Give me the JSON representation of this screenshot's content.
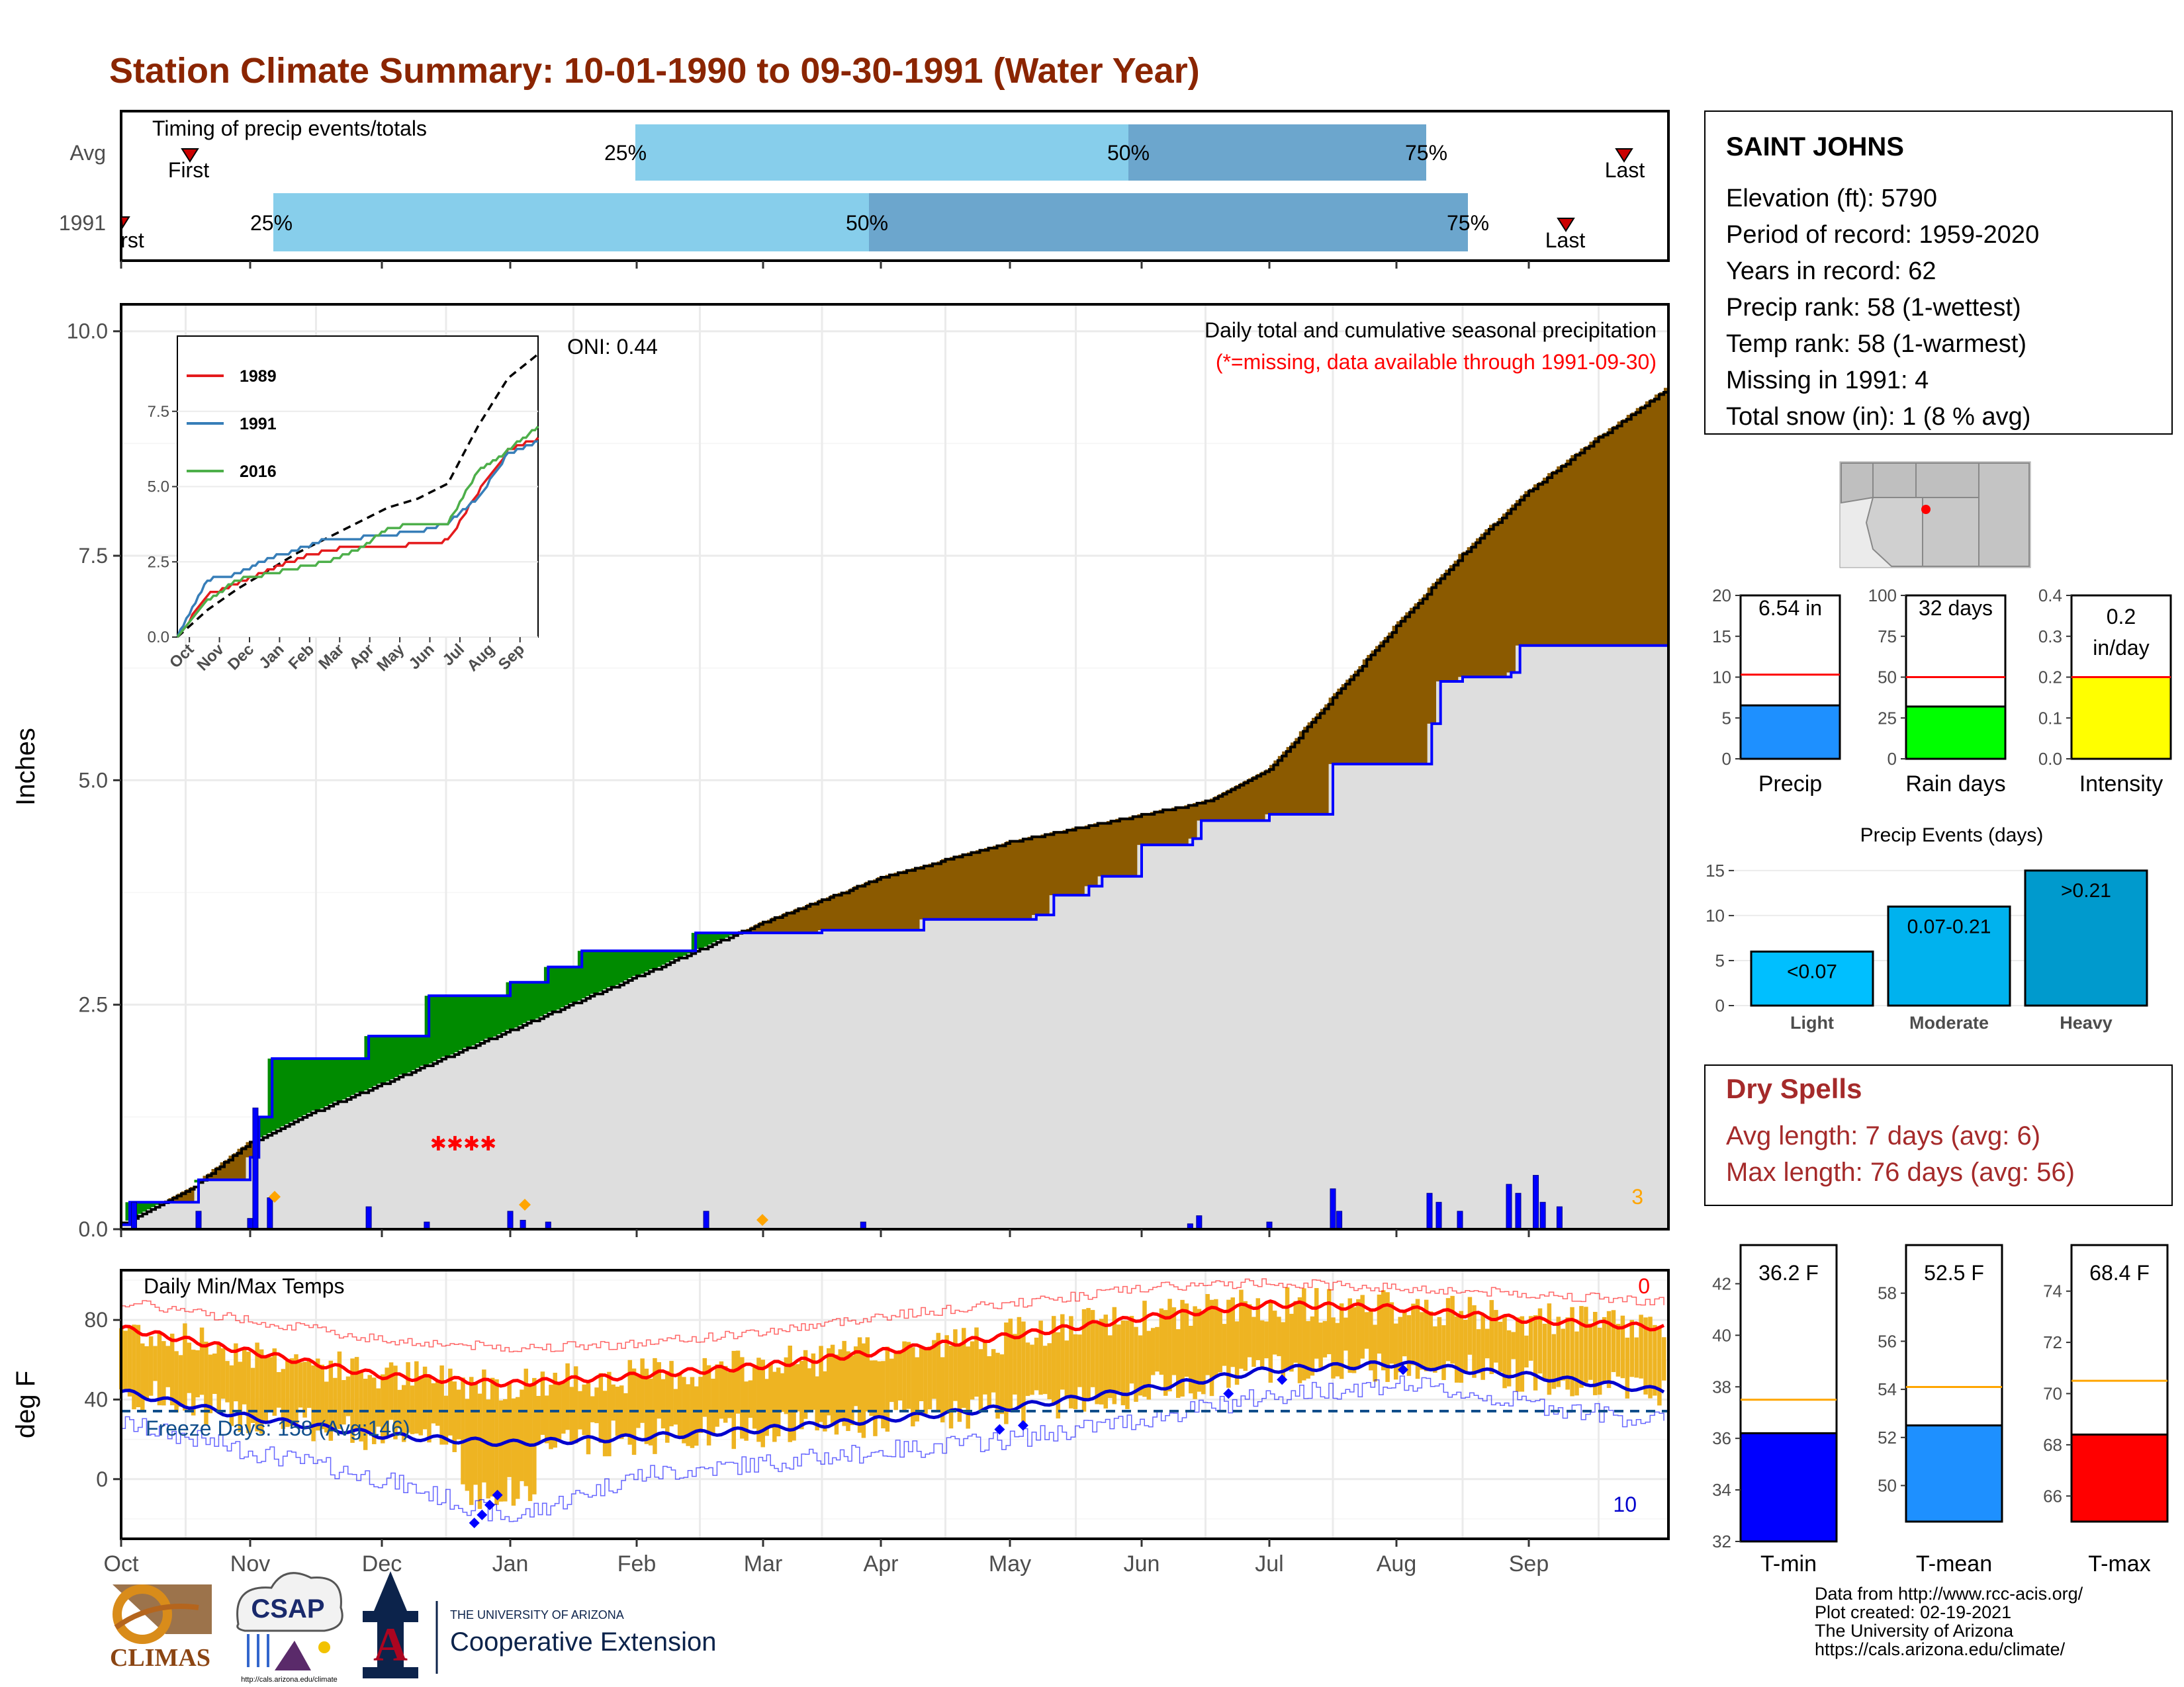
{
  "title": "Station Climate Summary: 10-01-1990 to 09-30-1991 (Water Year)",
  "colors": {
    "title": "#8b2500",
    "light_blue": "#87ceeb",
    "mid_blue": "#6ca6cd",
    "brown": "#8b5a00",
    "green": "#008b00",
    "gray_fill": "#dedede",
    "precip_blue": "#0000ff",
    "temp_bar": "#eeb422",
    "tmax_line": "#ff0000",
    "tmin_line": "#0000cd",
    "freeze_line": "#104e8b",
    "marker_orange": "#ffa500",
    "dry_spell_text": "#a52a2a"
  },
  "timing": {
    "title": "Timing of precip events/totals",
    "rows": [
      "Avg",
      "1991"
    ],
    "avg": {
      "first_label": "First",
      "last_label": "Last",
      "q25": "25%",
      "q50": "50%",
      "q75": "75%"
    },
    "year": {
      "first_label": "rst",
      "last_label": "Last",
      "q25": "25%",
      "q50": "50%",
      "q75": "75%"
    }
  },
  "info": {
    "station": "SAINT JOHNS",
    "lines": [
      "Elevation (ft): 5790",
      "Period of record: 1959-2020",
      "Years in record: 62",
      "Precip rank: 58 (1-wettest)",
      "Temp rank: 58 (1-warmest)",
      "Missing in 1991: 4",
      "Total snow (in): 1 (8 % avg)"
    ]
  },
  "precip_panel": {
    "ylabel": "Inches",
    "oni": "ONI: 0.44",
    "header": "Daily total and cumulative seasonal precipitation",
    "missing_note": "(*=missing, data available through 1991-09-30)",
    "corner_count": "3",
    "yticks": [
      "0.0",
      "2.5",
      "5.0",
      "7.5",
      "10.0"
    ]
  },
  "inset": {
    "yticks": [
      "0.0",
      "2.5",
      "5.0",
      "7.5"
    ],
    "xticks": [
      "Oct",
      "Nov",
      "Dec",
      "Jan",
      "Feb",
      "Mar",
      "Apr",
      "May",
      "Jun",
      "Jul",
      "Aug",
      "Sep"
    ],
    "legend": [
      "1989",
      "1991",
      "2016"
    ]
  },
  "temp_panel": {
    "ylabel": "deg F",
    "title": "Daily Min/Max Temps",
    "freeze": "Freeze Days: 158 (Avg:146)",
    "count_hot": "0",
    "count_cold": "10",
    "yticks": [
      "0",
      "40",
      "80"
    ]
  },
  "months": [
    "Oct",
    "Nov",
    "Dec",
    "Jan",
    "Feb",
    "Mar",
    "Apr",
    "May",
    "Jun",
    "Jul",
    "Aug",
    "Sep"
  ],
  "mini_bars_precip": [
    {
      "label": "Precip",
      "value_label": "6.54 in",
      "yticks": [
        "0",
        "5",
        "10",
        "15",
        "20"
      ]
    },
    {
      "label": "Rain days",
      "value_label": "32 days",
      "yticks": [
        "0",
        "25",
        "50",
        "75",
        "100"
      ]
    },
    {
      "label": "Intensity",
      "value_label_1": "0.2",
      "value_label_2": "in/day",
      "yticks": [
        "0.0",
        "0.1",
        "0.2",
        "0.3",
        "0.4"
      ]
    }
  ],
  "events": {
    "title": "Precip Events (days)",
    "categories": [
      "Light",
      "Moderate",
      "Heavy"
    ],
    "bar_labels": [
      "<0.07",
      "0.07-0.21",
      ">0.21"
    ],
    "yticks": [
      "0",
      "5",
      "10",
      "15"
    ]
  },
  "dry_spells": {
    "title": "Dry Spells",
    "avg_length": "Avg length: 7 days (avg: 6)",
    "max_length": "Max length: 76 days (avg: 56)"
  },
  "mini_bars_temp": [
    {
      "label": "T-min",
      "value_label": "36.2 F",
      "yticks": [
        "32",
        "34",
        "36",
        "38",
        "40",
        "42"
      ]
    },
    {
      "label": "T-mean",
      "value_label": "52.5 F",
      "yticks": [
        "50",
        "52",
        "54",
        "56",
        "58"
      ]
    },
    {
      "label": "T-max",
      "value_label": "68.4 F",
      "yticks": [
        "66",
        "68",
        "70",
        "72",
        "74"
      ]
    }
  ],
  "footer": {
    "lines": [
      "Data from http://www.rcc-acis.org/",
      "Plot created: 02-19-2021",
      "The University of Arizona",
      "https://cals.arizona.edu/climate/"
    ],
    "logo_climas": "CLIMAS",
    "logo_csap": "CSAP",
    "logo_csap_url": "http://cals.arizona.edu/climate",
    "ua_small": "THE UNIVERSITY OF ARIZONA",
    "ua_big": "Cooperative Extension",
    "ua_letter": "A"
  },
  "chart_data": [
    {
      "type": "area",
      "title": "Daily total and cumulative seasonal precipitation",
      "ylabel": "Inches",
      "ylim": [
        0,
        10.3
      ],
      "x_unit": "month",
      "x_categories": [
        "Oct",
        "Nov",
        "Dec",
        "Jan",
        "Feb",
        "Mar",
        "Apr",
        "May",
        "Jun",
        "Jul",
        "Aug",
        "Sep"
      ],
      "series": [
        {
          "name": "average cumulative",
          "x": [
            0,
            0.5,
            1.0,
            1.5,
            2.0,
            2.5,
            3.0,
            3.5,
            4.0,
            4.5,
            5.0,
            5.5,
            6.0,
            6.5,
            7.0,
            7.5,
            8.0,
            8.5,
            9.0,
            9.5,
            10.0,
            10.5,
            11.0,
            11.5,
            12.0
          ],
          "values": [
            0.05,
            0.4,
            0.95,
            1.3,
            1.6,
            1.9,
            2.2,
            2.5,
            2.8,
            3.1,
            3.4,
            3.65,
            3.9,
            4.1,
            4.3,
            4.45,
            4.6,
            4.75,
            5.1,
            5.9,
            6.7,
            7.5,
            8.2,
            8.8,
            9.35
          ]
        },
        {
          "name": "1991 cumulative",
          "x": [
            0,
            0.06,
            0.6,
            1.0,
            1.04,
            1.15,
            1.9,
            2.35,
            3.0,
            3.3,
            3.55,
            4.45,
            5.5,
            6.32,
            7.18,
            7.32,
            7.6,
            7.7,
            8.0,
            8.38,
            8.45,
            9.0,
            9.5,
            10.25,
            10.32,
            10.48,
            10.85,
            10.92,
            12.0
          ],
          "values": [
            0.05,
            0.3,
            0.55,
            0.8,
            1.25,
            1.9,
            2.15,
            2.6,
            2.75,
            2.92,
            3.1,
            3.3,
            3.33,
            3.45,
            3.5,
            3.72,
            3.82,
            3.93,
            4.28,
            4.35,
            4.55,
            4.62,
            5.18,
            5.63,
            6.1,
            6.15,
            6.2,
            6.5,
            6.5
          ]
        }
      ],
      "daily_precip_inches": [
        {
          "x": 0.1,
          "value": 0.3
        },
        {
          "x": 0.6,
          "value": 0.2
        },
        {
          "x": 1.0,
          "value": 0.12
        },
        {
          "x": 1.04,
          "value": 1.35
        },
        {
          "x": 1.15,
          "value": 0.35
        },
        {
          "x": 1.9,
          "value": 0.25
        },
        {
          "x": 2.35,
          "value": 0.08
        },
        {
          "x": 3.0,
          "value": 0.2
        },
        {
          "x": 3.1,
          "value": 0.1
        },
        {
          "x": 3.3,
          "value": 0.08
        },
        {
          "x": 4.55,
          "value": 0.2
        },
        {
          "x": 5.85,
          "value": 0.08
        },
        {
          "x": 8.38,
          "value": 0.06
        },
        {
          "x": 8.45,
          "value": 0.15
        },
        {
          "x": 9.0,
          "value": 0.08
        },
        {
          "x": 9.5,
          "value": 0.45
        },
        {
          "x": 9.55,
          "value": 0.2
        },
        {
          "x": 10.25,
          "value": 0.4
        },
        {
          "x": 10.32,
          "value": 0.3
        },
        {
          "x": 10.48,
          "value": 0.2
        },
        {
          "x": 10.85,
          "value": 0.5
        },
        {
          "x": 10.92,
          "value": 0.4
        },
        {
          "x": 11.05,
          "value": 0.6
        },
        {
          "x": 11.1,
          "value": 0.3
        },
        {
          "x": 11.22,
          "value": 0.25
        }
      ]
    },
    {
      "type": "line",
      "title": "inset cumulative precipitation",
      "ylim": [
        0,
        10
      ],
      "x_categories": [
        "Oct",
        "Nov",
        "Dec",
        "Jan",
        "Feb",
        "Mar",
        "Apr",
        "May",
        "Jun",
        "Jul",
        "Aug",
        "Sep"
      ],
      "series": [
        {
          "name": "average",
          "x": [
            0,
            1,
            2,
            3,
            4,
            5,
            6,
            7,
            8,
            9,
            10,
            11,
            12
          ],
          "values": [
            0,
            0.9,
            1.6,
            2.2,
            2.8,
            3.3,
            3.8,
            4.3,
            4.6,
            5.1,
            7.0,
            8.6,
            9.4
          ]
        },
        {
          "name": "1989",
          "x": [
            0,
            1,
            2,
            3,
            4,
            5,
            6,
            7,
            8,
            9,
            10,
            11,
            12
          ],
          "values": [
            0,
            1.4,
            1.8,
            2.2,
            2.6,
            2.9,
            3.0,
            3.0,
            3.1,
            3.2,
            4.8,
            6.2,
            6.6
          ]
        },
        {
          "name": "1991",
          "x": [
            0,
            1,
            2,
            3,
            4,
            5,
            6,
            7,
            8,
            9,
            10,
            11,
            12
          ],
          "values": [
            0,
            1.9,
            2.1,
            2.6,
            2.9,
            3.3,
            3.3,
            3.4,
            3.5,
            3.8,
            4.6,
            6.1,
            6.5
          ]
        },
        {
          "name": "2016",
          "x": [
            0,
            1,
            2,
            3,
            4,
            5,
            6,
            7,
            8,
            9,
            10,
            11,
            12
          ],
          "values": [
            0,
            1.2,
            1.9,
            2.1,
            2.3,
            2.5,
            2.9,
            3.6,
            3.8,
            3.8,
            5.5,
            6.2,
            7.0
          ]
        }
      ]
    },
    {
      "type": "line",
      "title": "Daily Min/Max Temps",
      "ylabel": "deg F",
      "ylim": [
        -30,
        105
      ],
      "x_categories": [
        "Oct",
        "Nov",
        "Dec",
        "Jan",
        "Feb",
        "Mar",
        "Apr",
        "May",
        "Jun",
        "Jul",
        "Aug",
        "Sep"
      ],
      "series": [
        {
          "name": "avg max",
          "x": [
            0,
            1,
            2,
            3,
            4,
            5,
            6,
            7,
            8,
            9,
            10,
            11,
            12
          ],
          "values": [
            76,
            64,
            52,
            48,
            52,
            57,
            64,
            72,
            81,
            88,
            86,
            80,
            76
          ]
        },
        {
          "name": "avg min",
          "x": [
            0,
            1,
            2,
            3,
            4,
            5,
            6,
            7,
            8,
            9,
            10,
            11,
            12
          ],
          "values": [
            44,
            31,
            22,
            18,
            21,
            25,
            30,
            36,
            45,
            55,
            58,
            52,
            44
          ]
        },
        {
          "name": "record max",
          "x": [
            0,
            1,
            2,
            3,
            4,
            5,
            6,
            7,
            8,
            9,
            10,
            11,
            12
          ],
          "values": [
            89,
            80,
            70,
            66,
            68,
            74,
            82,
            88,
            96,
            99,
            96,
            93,
            89
          ]
        },
        {
          "name": "record min",
          "x": [
            0,
            1,
            2,
            3,
            4,
            5,
            6,
            7,
            8,
            9,
            10,
            11,
            12
          ],
          "values": [
            28,
            14,
            0,
            -20,
            2,
            8,
            14,
            20,
            30,
            42,
            48,
            38,
            28
          ]
        },
        {
          "name": "freeze",
          "x": [
            0,
            12
          ],
          "values": [
            32,
            32
          ]
        }
      ]
    },
    {
      "type": "bar",
      "title": "Precip Events (days)",
      "categories": [
        "Light",
        "Moderate",
        "Heavy"
      ],
      "values": [
        6,
        11,
        15
      ],
      "ylim": [
        0,
        15.8
      ]
    },
    {
      "type": "bar",
      "categories": [
        "Precip",
        "Rain days",
        "Intensity"
      ],
      "values": [
        6.54,
        32,
        0.2
      ],
      "averages": [
        10.3,
        50,
        0.2
      ]
    },
    {
      "type": "bar",
      "categories": [
        "T-min",
        "T-mean",
        "T-max"
      ],
      "values": [
        36.2,
        52.5,
        68.4
      ],
      "averages": [
        37.5,
        54.1,
        70.5
      ]
    }
  ]
}
